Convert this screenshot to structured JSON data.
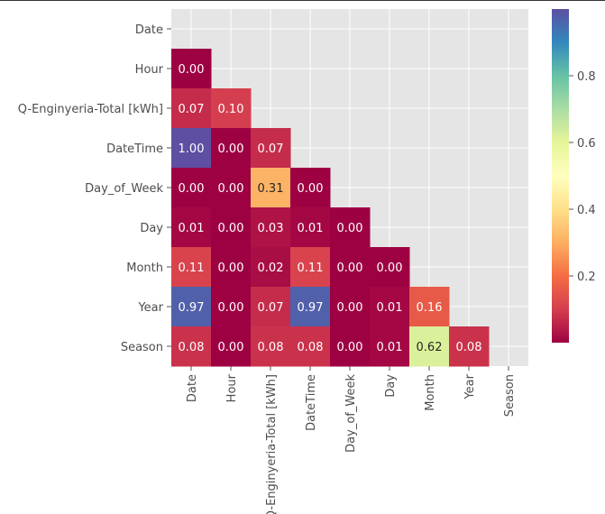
{
  "chart_data": {
    "type": "heatmap",
    "title": "",
    "row_labels": [
      "Date",
      "Hour",
      "Q-Enginyeria-Total [kWh]",
      "DateTime",
      "Day_of_Week",
      "Day",
      "Month",
      "Year",
      "Season"
    ],
    "col_labels": [
      "Date",
      "Hour",
      "Q-Enginyeria-Total [kWh]",
      "DateTime",
      "Day_of_Week",
      "Day",
      "Month",
      "Year",
      "Season"
    ],
    "mask": "upper triangle including diagonal",
    "values": [
      [
        null,
        null,
        null,
        null,
        null,
        null,
        null,
        null,
        null
      ],
      [
        0.0,
        null,
        null,
        null,
        null,
        null,
        null,
        null,
        null
      ],
      [
        0.07,
        0.1,
        null,
        null,
        null,
        null,
        null,
        null,
        null
      ],
      [
        1.0,
        0.0,
        0.07,
        null,
        null,
        null,
        null,
        null,
        null
      ],
      [
        0.0,
        0.0,
        0.31,
        0.0,
        null,
        null,
        null,
        null,
        null
      ],
      [
        0.01,
        0.0,
        0.03,
        0.01,
        0.0,
        null,
        null,
        null,
        null
      ],
      [
        0.11,
        0.0,
        0.02,
        0.11,
        0.0,
        0.0,
        null,
        null,
        null
      ],
      [
        0.97,
        0.0,
        0.07,
        0.97,
        0.0,
        0.01,
        0.16,
        null,
        null
      ],
      [
        0.08,
        0.0,
        0.08,
        0.08,
        0.0,
        0.01,
        0.62,
        0.08,
        null
      ]
    ],
    "value_format": "2 decimals",
    "colormap": "Spectral",
    "colorbar": {
      "range": [
        0.0,
        1.0
      ],
      "ticks": [
        0.2,
        0.4,
        0.6,
        0.8
      ],
      "tick_labels": [
        "0.2",
        "0.4",
        "0.6",
        "0.8"
      ]
    },
    "background_color": "#e5e5e5",
    "grid": true,
    "grid_color": "#ffffff"
  }
}
